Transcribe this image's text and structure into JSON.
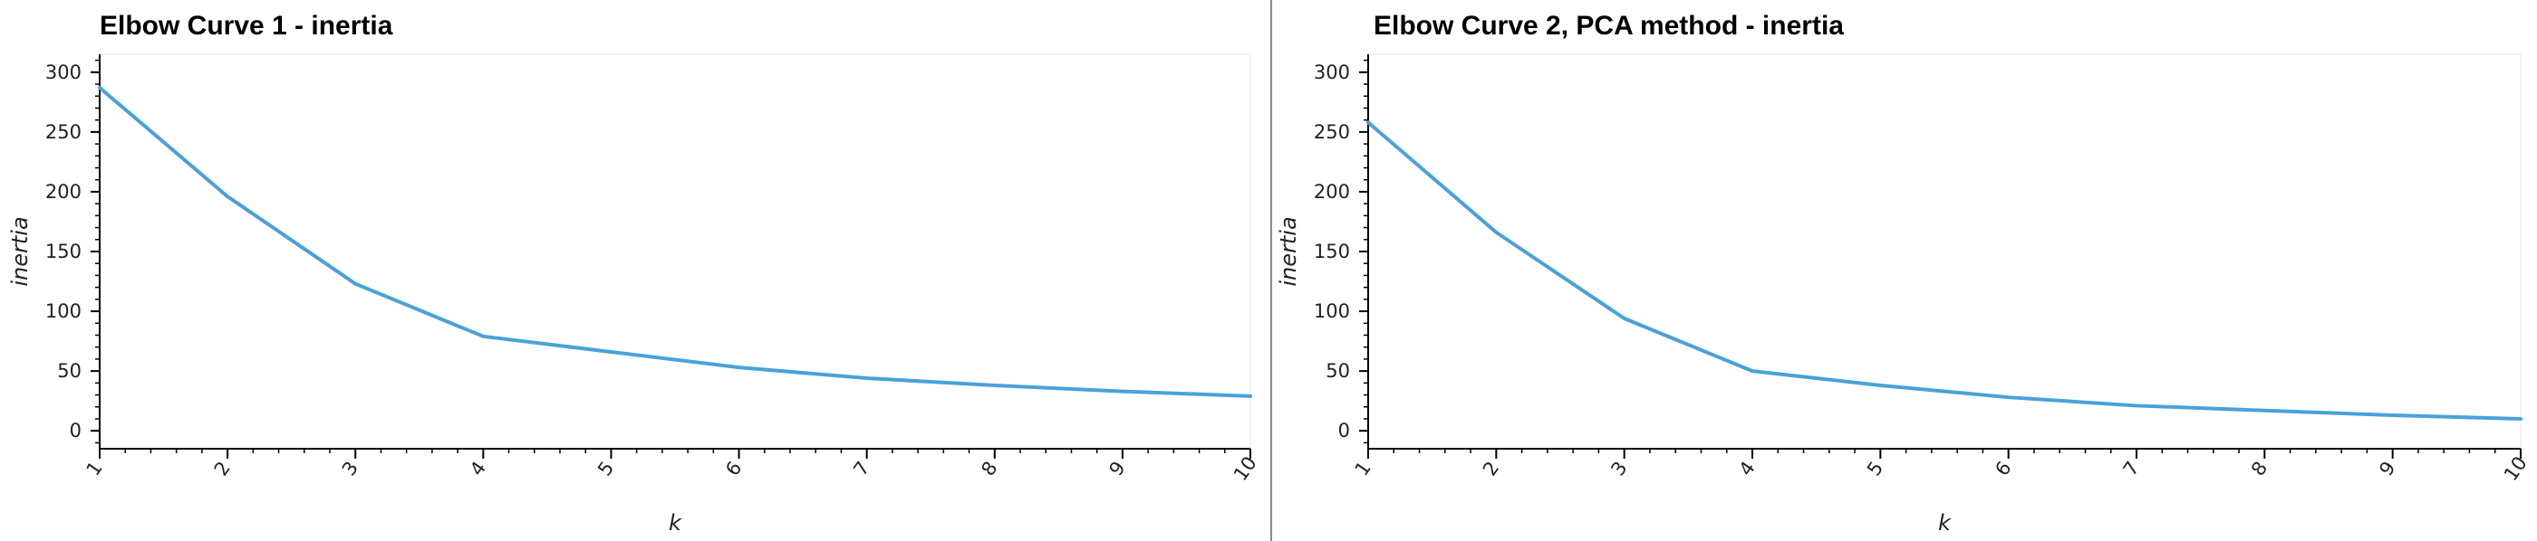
{
  "chart_data": [
    {
      "type": "line",
      "title": "Elbow Curve 1 - inertia",
      "xlabel": "k",
      "ylabel": "inertia",
      "x": [
        1,
        2,
        3,
        4,
        5,
        6,
        7,
        8,
        9,
        10
      ],
      "series": [
        {
          "values": [
            287,
            196,
            123,
            79,
            66,
            53,
            44,
            38,
            33,
            29
          ]
        }
      ],
      "xlim": [
        1,
        10
      ],
      "ylim": [
        -15,
        315
      ],
      "yticks": [
        0,
        50,
        100,
        150,
        200,
        250,
        300
      ],
      "xticks": [
        1,
        2,
        3,
        4,
        5,
        6,
        7,
        8,
        9,
        10
      ],
      "grid": false,
      "line_color": "#4aa1d8"
    },
    {
      "type": "line",
      "title": "Elbow Curve 2, PCA method - inertia",
      "xlabel": "k",
      "ylabel": "inertia",
      "x": [
        1,
        2,
        3,
        4,
        5,
        6,
        7,
        8,
        9,
        10
      ],
      "series": [
        {
          "values": [
            258,
            166,
            94,
            50,
            38,
            28,
            21,
            17,
            13,
            10
          ]
        }
      ],
      "xlim": [
        1,
        10
      ],
      "ylim": [
        -15,
        315
      ],
      "yticks": [
        0,
        50,
        100,
        150,
        200,
        250,
        300
      ],
      "xticks": [
        1,
        2,
        3,
        4,
        5,
        6,
        7,
        8,
        9,
        10
      ],
      "grid": false,
      "line_color": "#4aa1d8"
    }
  ]
}
